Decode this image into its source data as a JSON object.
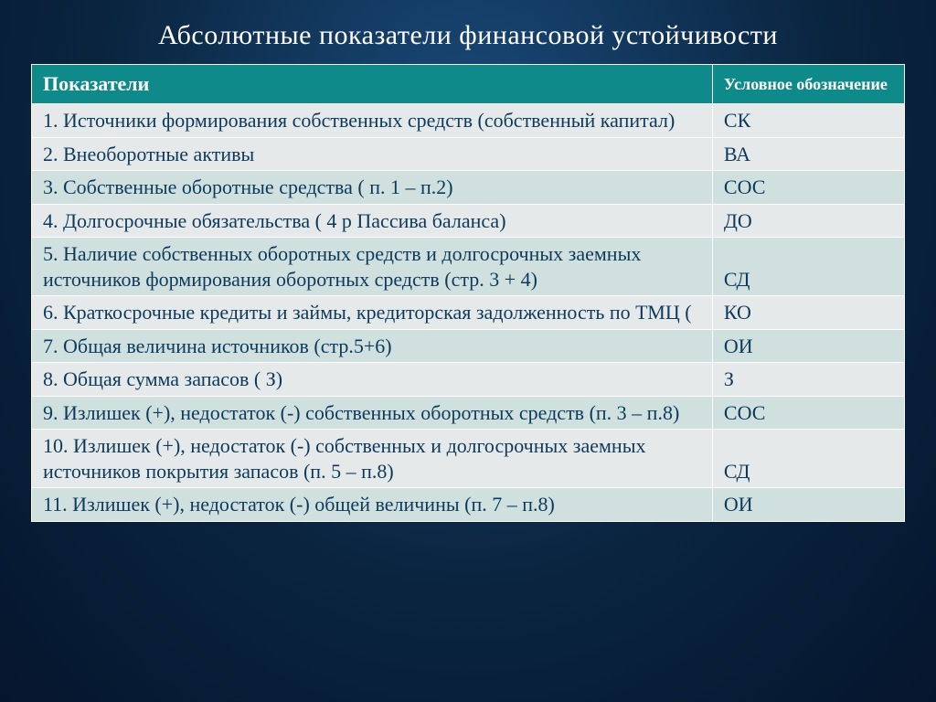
{
  "title": "Абсолютные показатели финансовой устойчивости",
  "table": {
    "header": {
      "col1": "Показатели",
      "col2": "Условное обозначение"
    },
    "rows": [
      {
        "indicator": "1. Источники формирования собственных средств (собственный капитал)",
        "symbol": "СК",
        "band": "odd"
      },
      {
        "indicator": " 2. Внеоборотные активы",
        "symbol": "ВА",
        "band": "odd"
      },
      {
        "indicator": "3. Собственные оборотные средства  ( п. 1 – п.2)",
        "symbol": "СОС",
        "band": "even"
      },
      {
        "indicator": " 4. Долгосрочные обязательства ( 4 р Пассива баланса)",
        "symbol": "  ДО",
        "band": "odd"
      },
      {
        "indicator": "5. Наличие собственных оборотных средств и долгосрочных заемных источников формирования оборотных средств (стр. 3 + 4)",
        "symbol": "  СД",
        "band": "even"
      },
      {
        "indicator": " 6. Краткосрочные кредиты и займы, кредиторская задолженность по ТМЦ (",
        "symbol": "КО",
        "band": "odd"
      },
      {
        "indicator": "7. Общая величина источников  (стр.5+6)",
        "symbol": "ОИ",
        "band": "even"
      },
      {
        "indicator": "8. Общая сумма запасов  ( З)",
        "symbol": "З",
        "band": "odd"
      },
      {
        "indicator": "9. Излишек (+), недостаток (-) собственных оборотных средств (п. 3 – п.8)",
        "symbol": "СОС",
        "band": "even"
      },
      {
        "indicator": " 10. Излишек (+), недостаток (-) собственных и долгосрочных заемных источников покрытия запасов (п. 5 – п.8)",
        "symbol": "  СД",
        "band": "odd"
      },
      {
        "indicator": "11. Излишек (+), недостаток (-) общей величины (п. 7 – п.8)",
        "symbol": "ОИ",
        "band": "even"
      }
    ]
  },
  "colors": {
    "header_bg": "#0f8a8a",
    "header_fg": "#ffffff",
    "row_odd": "#e6e9e9",
    "row_even": "#cfe0df",
    "cell_text": "#0d3a5c",
    "title_fg": "#ffffff"
  }
}
